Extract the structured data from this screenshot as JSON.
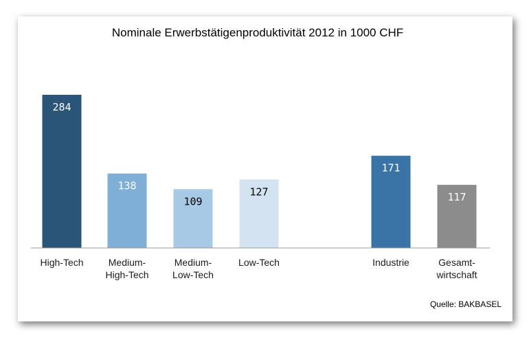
{
  "chart_data": {
    "type": "bar",
    "title": "Nominale Erwerbstätigenproduktivität 2012 in 1000 CHF",
    "source": "Quelle: BAKBASEL",
    "categories": [
      [
        "High-Tech"
      ],
      [
        "Medium-",
        "High-Tech"
      ],
      [
        "Medium-",
        "Low-Tech"
      ],
      [
        "Low-Tech"
      ],
      [
        "Industrie"
      ],
      [
        "Gesamt-",
        "wirtschaft"
      ]
    ],
    "values": [
      284,
      138,
      109,
      127,
      171,
      117
    ],
    "colors": [
      "#2a5579",
      "#7fafd6",
      "#a8c9e6",
      "#d4e3f1",
      "#3a74a6",
      "#8c8c8c"
    ],
    "label_colors": [
      "#ffffff",
      "#ffffff",
      "#000000",
      "#000000",
      "#ffffff",
      "#ffffff"
    ],
    "ylim": [
      0,
      300
    ],
    "grid": false,
    "legend": "none"
  }
}
